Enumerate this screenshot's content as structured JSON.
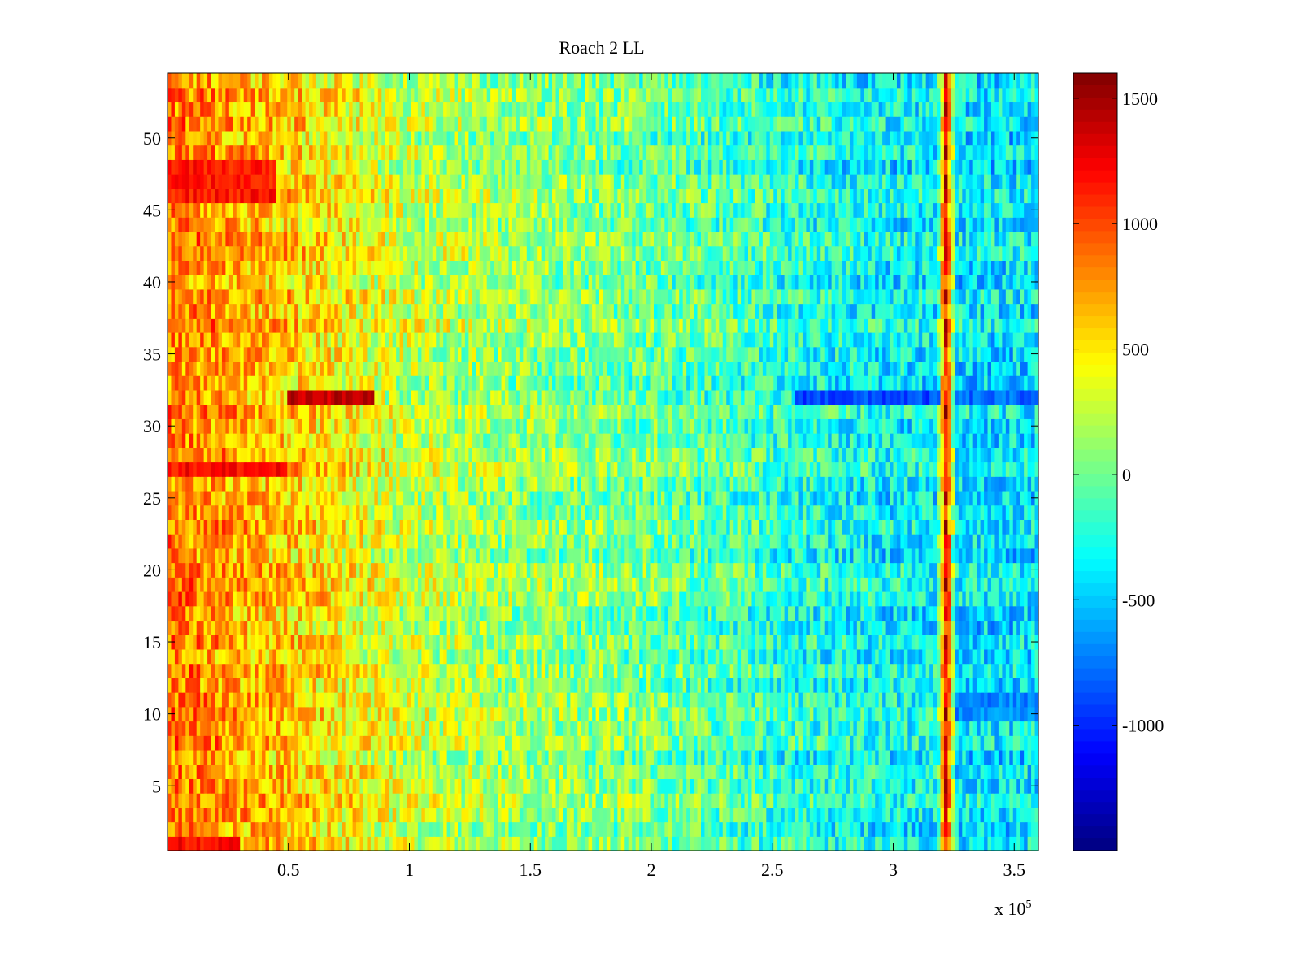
{
  "chart_data": {
    "type": "heatmap",
    "title": "Roach 2 LL",
    "xlabel": "",
    "ylabel": "",
    "x_multiplier_label": "x 10",
    "x_multiplier_exponent": "5",
    "xlim": [
      0,
      360000
    ],
    "ylim": [
      0.5,
      54.5
    ],
    "x_ticks": [
      {
        "value": 50000,
        "label": "0.5"
      },
      {
        "value": 100000,
        "label": "1"
      },
      {
        "value": 150000,
        "label": "1.5"
      },
      {
        "value": 200000,
        "label": "2"
      },
      {
        "value": 250000,
        "label": "2.5"
      },
      {
        "value": 300000,
        "label": "3"
      },
      {
        "value": 350000,
        "label": "3.5"
      }
    ],
    "y_ticks": [
      {
        "value": 5,
        "label": "5"
      },
      {
        "value": 10,
        "label": "10"
      },
      {
        "value": 15,
        "label": "15"
      },
      {
        "value": 20,
        "label": "20"
      },
      {
        "value": 25,
        "label": "25"
      },
      {
        "value": 30,
        "label": "30"
      },
      {
        "value": 35,
        "label": "35"
      },
      {
        "value": 40,
        "label": "40"
      },
      {
        "value": 45,
        "label": "45"
      },
      {
        "value": 50,
        "label": "50"
      }
    ],
    "rows": 54,
    "colormap": "jet",
    "clim": [
      -1500,
      1600
    ],
    "colorbar": {
      "ticks": [
        {
          "value": 1500,
          "label": "1500"
        },
        {
          "value": 1000,
          "label": "1000"
        },
        {
          "value": 500,
          "label": "500"
        },
        {
          "value": 0,
          "label": "0"
        },
        {
          "value": -500,
          "label": "-500"
        },
        {
          "value": -1000,
          "label": "-1000"
        }
      ]
    },
    "trend_x": [
      0,
      50000,
      100000,
      150000,
      200000,
      250000,
      300000,
      318000,
      322000,
      326000,
      360000
    ],
    "trend_values": [
      850,
      600,
      250,
      100,
      0,
      -200,
      -350,
      -350,
      1300,
      -400,
      -400
    ],
    "notable_features": [
      {
        "row": 32,
        "x_range": [
          50000,
          85000
        ],
        "value": 1400
      },
      {
        "row": 32,
        "x_range": [
          260000,
          320000
        ],
        "value": -900
      },
      {
        "row": 32,
        "x_range": [
          325000,
          360000
        ],
        "value": -800
      },
      {
        "row": 27,
        "x_range": [
          0,
          50000
        ],
        "value": 1200
      },
      {
        "rows": [
          46,
          47,
          48
        ],
        "x_range": [
          0,
          45000
        ],
        "value": 1150
      },
      {
        "row": 1,
        "x_range": [
          0,
          30000
        ],
        "value": 1200
      },
      {
        "rows": [
          10,
          11
        ],
        "x_range": [
          325000,
          360000
        ],
        "value": -700
      }
    ],
    "grid": false,
    "legend": "none"
  }
}
